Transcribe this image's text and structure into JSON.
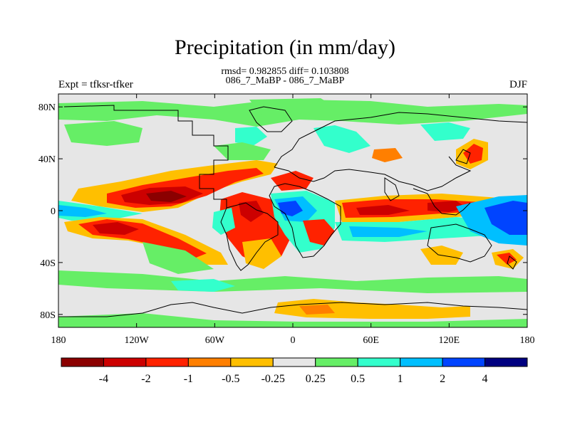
{
  "title": "Precipitation (in mm/day)",
  "stats": "rmsd= 0.982855 diff= 0.103808",
  "subtitle": "086_7_MaBP - 086_7_MaBP",
  "left_label": "Expt = tfksr-tfker",
  "right_label": "DJF",
  "lon_ticks": [
    "180",
    "120W",
    "60W",
    "0",
    "60E",
    "120E",
    "180"
  ],
  "lat_ticks": [
    "80N",
    "40N",
    "0",
    "40S",
    "80S"
  ],
  "colorbar": {
    "colors": [
      "#8b0000",
      "#cc0000",
      "#ff2200",
      "#ff7f00",
      "#ffbf00",
      "#e6e6e6",
      "#66ee66",
      "#33ffcc",
      "#00bfff",
      "#0044ff",
      "#000080"
    ],
    "labels": [
      "-4",
      "-2",
      "-1",
      "-0.5",
      "-0.25",
      "0.25",
      "0.5",
      "1",
      "2",
      "4"
    ]
  },
  "chart_data": {
    "type": "heatmap",
    "title": "Precipitation (in mm/day)",
    "variable": "Precipitation difference",
    "units": "mm/day",
    "season": "DJF",
    "x_range": [
      -180,
      180
    ],
    "y_range": [
      -90,
      90
    ],
    "levels": [
      -4,
      -2,
      -1,
      -0.5,
      -0.25,
      0.25,
      0.5,
      1,
      2,
      4
    ],
    "features": [
      {
        "lon": -105,
        "lat": 10,
        "value": -5
      },
      {
        "lon": -140,
        "lat": -13,
        "value": -3
      },
      {
        "lon": -90,
        "lat": -22,
        "value": -1.5
      },
      {
        "lon": -40,
        "lat": 20,
        "value": -1.5
      },
      {
        "lon": -40,
        "lat": -10,
        "value": -2
      },
      {
        "lon": -5,
        "lat": 0,
        "value": 3
      },
      {
        "lon": 80,
        "lat": -2,
        "value": -2
      },
      {
        "lon": 130,
        "lat": 8,
        "value": -1.5
      },
      {
        "lon": 160,
        "lat": 0,
        "value": 3
      },
      {
        "lon": 140,
        "lat": 35,
        "value": -2
      },
      {
        "lon": 170,
        "lat": -18,
        "value": 2
      },
      {
        "lon": 0,
        "lat": 70,
        "value": 0.5
      },
      {
        "lon": 55,
        "lat": 40,
        "value": -0.5
      },
      {
        "lon": 80,
        "lat": -75,
        "value": -0.5
      }
    ]
  }
}
